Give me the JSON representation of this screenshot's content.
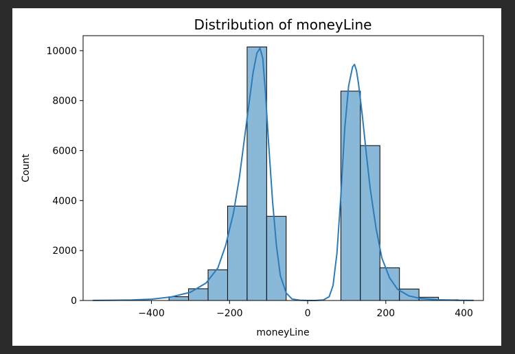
{
  "chart_data": {
    "type": "bar",
    "title": "Distribution of moneyLine",
    "xlabel": "moneyLine",
    "ylabel": "Count",
    "xlim": [
      -575,
      450
    ],
    "ylim": [
      0,
      10600
    ],
    "xticks": [
      -400,
      -200,
      0,
      200,
      400
    ],
    "xtick_labels": [
      "−400",
      "−200",
      "0",
      "200",
      "400"
    ],
    "yticks": [
      0,
      2000,
      4000,
      6000,
      8000,
      10000
    ],
    "ytick_labels": [
      "0",
      "2000",
      "4000",
      "6000",
      "8000",
      "10000"
    ],
    "bins": [
      {
        "x0": -355,
        "x1": -305,
        "count": 150
      },
      {
        "x0": -305,
        "x1": -255,
        "count": 470
      },
      {
        "x0": -255,
        "x1": -205,
        "count": 1230
      },
      {
        "x0": -205,
        "x1": -155,
        "count": 3780
      },
      {
        "x0": -155,
        "x1": -105,
        "count": 10150
      },
      {
        "x0": -105,
        "x1": -55,
        "count": 3370
      },
      {
        "x0": 85,
        "x1": 135,
        "count": 8380
      },
      {
        "x0": 135,
        "x1": 185,
        "count": 6200
      },
      {
        "x0": 185,
        "x1": 235,
        "count": 1310
      },
      {
        "x0": 235,
        "x1": 285,
        "count": 460
      },
      {
        "x0": 285,
        "x1": 335,
        "count": 130
      },
      {
        "x0": 335,
        "x1": 385,
        "count": 30
      }
    ],
    "kde": {
      "x": [
        -550,
        -500,
        -450,
        -400,
        -350,
        -300,
        -260,
        -230,
        -210,
        -190,
        -175,
        -160,
        -150,
        -140,
        -130,
        -122,
        -115,
        -108,
        -100,
        -90,
        -80,
        -70,
        -55,
        -40,
        -20,
        0,
        20,
        40,
        55,
        65,
        75,
        85,
        95,
        105,
        115,
        120,
        125,
        130,
        140,
        150,
        160,
        175,
        190,
        210,
        230,
        260,
        290,
        330,
        380,
        425
      ],
      "y": [
        5,
        10,
        20,
        50,
        140,
        330,
        700,
        1300,
        2200,
        3500,
        4900,
        6700,
        7900,
        9100,
        9900,
        10100,
        9700,
        8300,
        6300,
        4000,
        2200,
        1000,
        300,
        60,
        10,
        0,
        0,
        20,
        150,
        600,
        1900,
        4200,
        6900,
        8600,
        9350,
        9450,
        9200,
        8700,
        7400,
        5900,
        4500,
        2900,
        1700,
        900,
        450,
        180,
        80,
        30,
        10,
        5
      ]
    },
    "grid": false,
    "colors": {
      "bar_fill": "#8ab8d8",
      "bar_edge": "#000000",
      "kde_line": "#2b7bba"
    }
  }
}
